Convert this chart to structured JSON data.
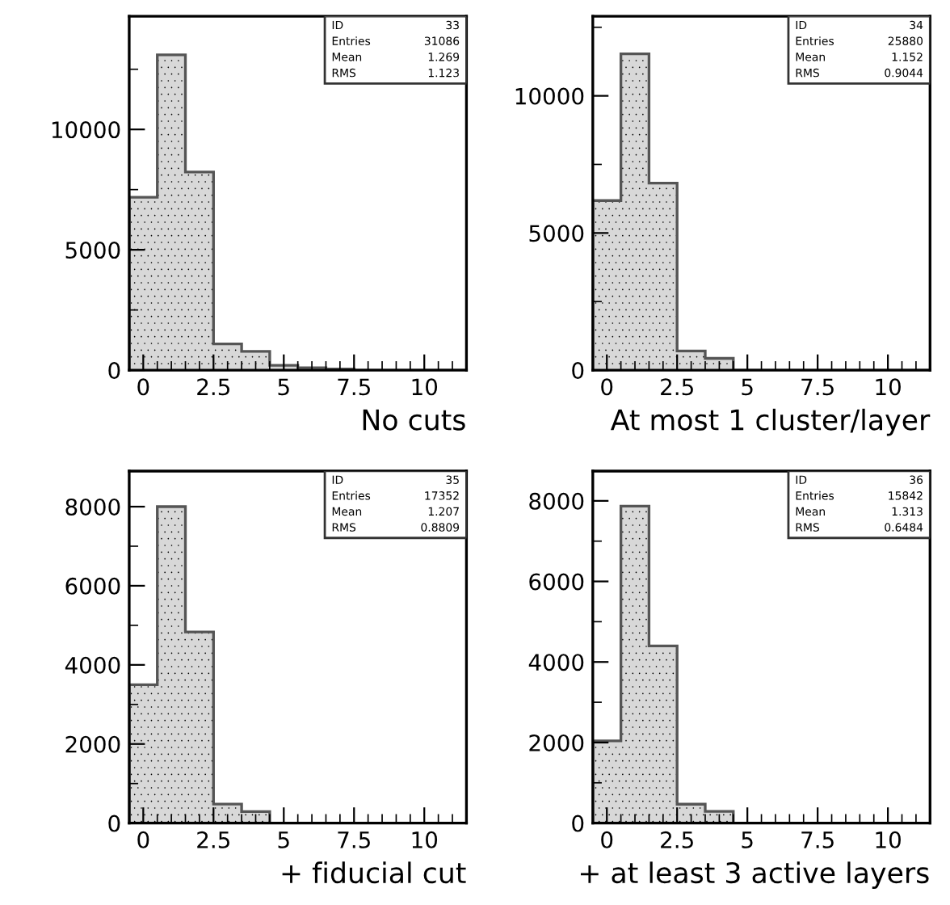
{
  "chart_data": [
    {
      "type": "histogram",
      "xlabel": "No cuts",
      "bins": [
        -0.5,
        0.5,
        1.5,
        2.5,
        3.5,
        4.5,
        5.5,
        6.5,
        7.5,
        8.5,
        9.5,
        10.5,
        11.5
      ],
      "values": [
        7180,
        13100,
        8230,
        1090,
        780,
        200,
        100,
        50,
        0,
        0,
        0,
        0
      ],
      "color": "#d8d8d8",
      "xlim": [
        -0.5,
        11.5
      ],
      "ylim": [
        0,
        14700
      ],
      "xticks": [
        0,
        2.5,
        5,
        7.5,
        10
      ],
      "yticks": [
        0,
        5000,
        10000
      ],
      "annotations": [
        "ID",
        "33",
        "Entries",
        "31086",
        "Mean",
        "1.269",
        "RMS",
        "1.123"
      ],
      "grid": false
    },
    {
      "type": "histogram",
      "xlabel": "At most 1 cluster/layer",
      "bins": [
        -0.5,
        0.5,
        1.5,
        2.5,
        3.5,
        4.5,
        5.5,
        6.5,
        7.5,
        8.5,
        9.5,
        10.5,
        11.5
      ],
      "values": [
        6180,
        11530,
        6820,
        700,
        430,
        0,
        0,
        0,
        0,
        0,
        0,
        0
      ],
      "color": "#d8d8d8",
      "xlim": [
        -0.5,
        11.5
      ],
      "ylim": [
        0,
        12900
      ],
      "xticks": [
        0,
        2.5,
        5,
        7.5,
        10
      ],
      "yticks": [
        0,
        5000,
        10000
      ],
      "annotations": [
        "ID",
        "34",
        "Entries",
        "25880",
        "Mean",
        "1.152",
        "RMS",
        "0.9044"
      ],
      "grid": false
    },
    {
      "type": "histogram",
      "xlabel": "+ fiducial cut",
      "bins": [
        -0.5,
        0.5,
        1.5,
        2.5,
        3.5,
        4.5,
        5.5,
        6.5,
        7.5,
        8.5,
        9.5,
        10.5,
        11.5
      ],
      "values": [
        3500,
        8000,
        4830,
        480,
        290,
        0,
        0,
        0,
        0,
        0,
        0,
        0
      ],
      "color": "#d8d8d8",
      "xlim": [
        -0.5,
        11.5
      ],
      "ylim": [
        0,
        8900
      ],
      "xticks": [
        0,
        2.5,
        5,
        7.5,
        10
      ],
      "yticks": [
        0,
        2000,
        4000,
        6000,
        8000
      ],
      "annotations": [
        "ID",
        "35",
        "Entries",
        "17352",
        "Mean",
        "1.207",
        "RMS",
        "0.8809"
      ],
      "grid": false
    },
    {
      "type": "histogram",
      "xlabel": "+ at least 3 active layers",
      "bins": [
        -0.5,
        0.5,
        1.5,
        2.5,
        3.5,
        4.5,
        5.5,
        6.5,
        7.5,
        8.5,
        9.5,
        10.5,
        11.5
      ],
      "values": [
        2040,
        7870,
        4400,
        470,
        290,
        0,
        0,
        0,
        0,
        0,
        0,
        0
      ],
      "color": "#d8d8d8",
      "xlim": [
        -0.5,
        11.5
      ],
      "ylim": [
        0,
        8740
      ],
      "xticks": [
        0,
        2.5,
        5,
        7.5,
        10
      ],
      "yticks": [
        0,
        2000,
        4000,
        6000,
        8000
      ],
      "annotations": [
        "ID",
        "36",
        "Entries",
        "15842",
        "Mean",
        "1.313",
        "RMS",
        "0.6484"
      ],
      "grid": false
    }
  ]
}
